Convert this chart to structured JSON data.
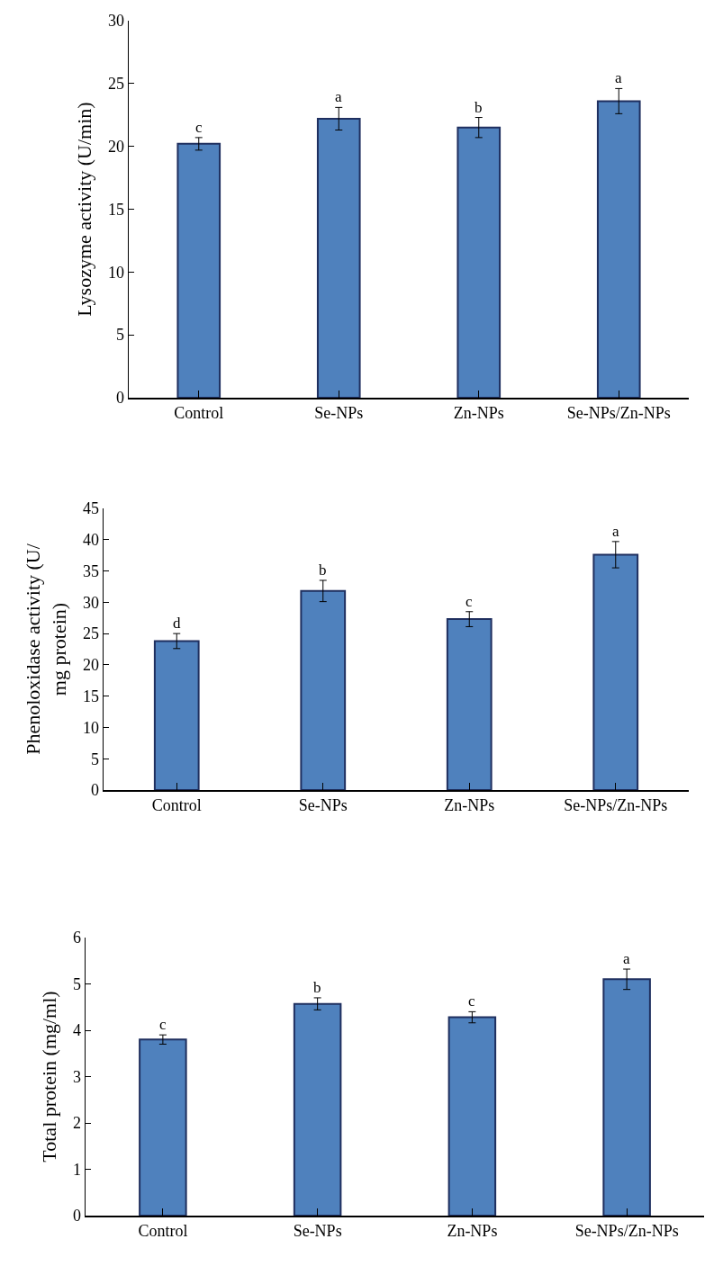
{
  "chart_data": [
    {
      "type": "bar",
      "ylabel": "Lysozyme activity (U/min)",
      "categories": [
        "Control",
        "Se-NPs",
        "Zn-NPs",
        "Se-NPs/Zn-NPs"
      ],
      "values": [
        20.2,
        22.2,
        21.5,
        23.6
      ],
      "errors": [
        0.5,
        0.9,
        0.8,
        1.0
      ],
      "color": "#4f81bd",
      "ylim": [
        0,
        30
      ],
      "yticks": [
        0,
        5,
        10,
        15,
        20,
        25,
        30
      ],
      "grid": false,
      "legend": false,
      "annotations": [
        {
          "text": "c",
          "x": "Control",
          "y": 20.7
        },
        {
          "text": "a",
          "x": "Se-NPs",
          "y": 23.1
        },
        {
          "text": "b",
          "x": "Zn-NPs",
          "y": 22.3
        },
        {
          "text": "a",
          "x": "Se-NPs/Zn-NPs",
          "y": 24.6
        }
      ]
    },
    {
      "type": "bar",
      "ylabel": "Phenoloxidase activity (U/ mg protein)",
      "categories": [
        "Control",
        "Se-NPs",
        "Zn-NPs",
        "Se-NPs/Zn-NPs"
      ],
      "values": [
        23.8,
        31.8,
        27.3,
        37.6
      ],
      "errors": [
        1.2,
        1.7,
        1.2,
        2.1
      ],
      "color": "#4f81bd",
      "ylim": [
        0,
        45
      ],
      "yticks": [
        0,
        5,
        10,
        15,
        20,
        25,
        30,
        35,
        40,
        45
      ],
      "grid": false,
      "legend": false,
      "annotations": [
        {
          "text": "d",
          "x": "Control",
          "y": 25.0
        },
        {
          "text": "b",
          "x": "Se-NPs",
          "y": 33.5
        },
        {
          "text": "c",
          "x": "Zn-NPs",
          "y": 28.5
        },
        {
          "text": "a",
          "x": "Se-NPs/Zn-NPs",
          "y": 39.7
        }
      ]
    },
    {
      "type": "bar",
      "ylabel": "Total protein (mg/ml)",
      "categories": [
        "Control",
        "Se-NPs",
        "Zn-NPs",
        "Se-NPs/Zn-NPs"
      ],
      "values": [
        3.8,
        4.57,
        4.28,
        5.1
      ],
      "errors": [
        0.1,
        0.13,
        0.12,
        0.22
      ],
      "color": "#4f81bd",
      "ylim": [
        0,
        6
      ],
      "yticks": [
        0,
        1,
        2,
        3,
        4,
        5,
        6
      ],
      "grid": false,
      "legend": false,
      "annotations": [
        {
          "text": "c",
          "x": "Control",
          "y": 3.9
        },
        {
          "text": "b",
          "x": "Se-NPs",
          "y": 4.7
        },
        {
          "text": "c",
          "x": "Zn-NPs",
          "y": 4.4
        },
        {
          "text": "a",
          "x": "Se-NPs/Zn-NPs",
          "y": 5.32
        }
      ]
    }
  ]
}
